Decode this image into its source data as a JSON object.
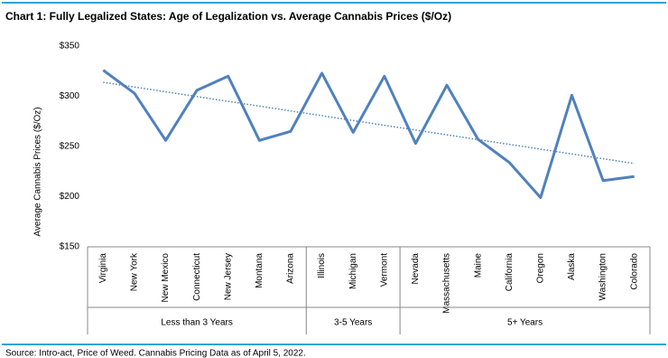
{
  "chart_data": {
    "type": "line",
    "title": "Chart 1: Fully Legalized States: Age of Legalization vs. Average Cannabis Prices ($/Oz)",
    "y_label": "Average Cannabis Prices ($/Oz)",
    "source": "Source: Intro-act, Price of Weed. Cannabis Pricing Data as of April 5, 2022.",
    "categories": [
      "Virginia",
      "New York",
      "New Mexico",
      "Connecticut",
      "New Jersey",
      "Montana",
      "Arizona",
      "Illinois",
      "Michigan",
      "Vermont",
      "Nevada",
      "Massachusetts",
      "Maine",
      "California",
      "Oregon",
      "Alaska",
      "Washington",
      "Colorado"
    ],
    "groups": [
      {
        "label": "Less than 3 Years",
        "count": 7
      },
      {
        "label": "3-5 Years",
        "count": 3
      },
      {
        "label": "5+ Years",
        "count": 8
      }
    ],
    "series": [
      {
        "color": "#4f81bd",
        "values": [
          326,
          303,
          256,
          306,
          320,
          256,
          265,
          323,
          264,
          320,
          253,
          311,
          257,
          234,
          199,
          301,
          216,
          220
        ]
      }
    ],
    "trendline": {
      "color": "#4f81bd",
      "values": [
        314,
        233
      ]
    },
    "ylim": [
      150,
      350
    ],
    "yticks": [
      {
        "value": 150,
        "label": "$150"
      },
      {
        "value": 200,
        "label": "$200"
      },
      {
        "value": 250,
        "label": "$250"
      },
      {
        "value": 300,
        "label": "$300"
      },
      {
        "value": 350,
        "label": "$350"
      }
    ],
    "grid": false
  }
}
